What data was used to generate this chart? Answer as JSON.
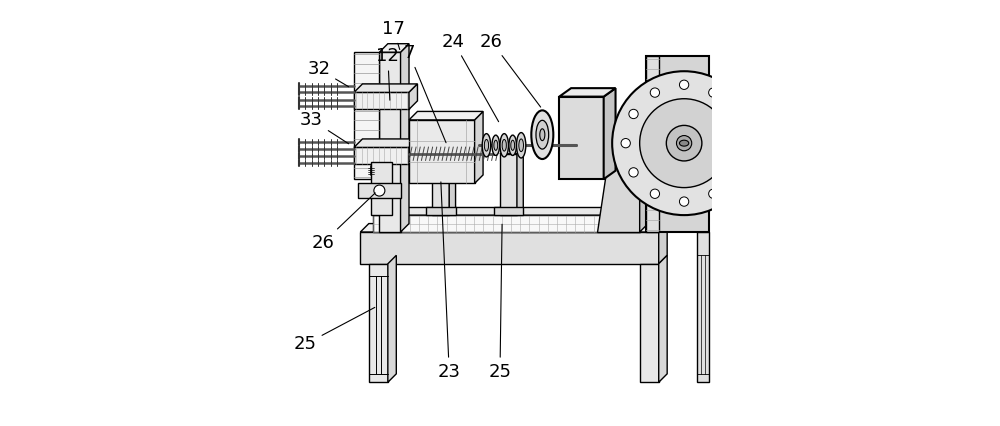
{
  "bg_color": "#ffffff",
  "line_color": "#000000",
  "label_fontsize": 13,
  "figsize": [
    10.0,
    4.26
  ],
  "dpi": 100
}
